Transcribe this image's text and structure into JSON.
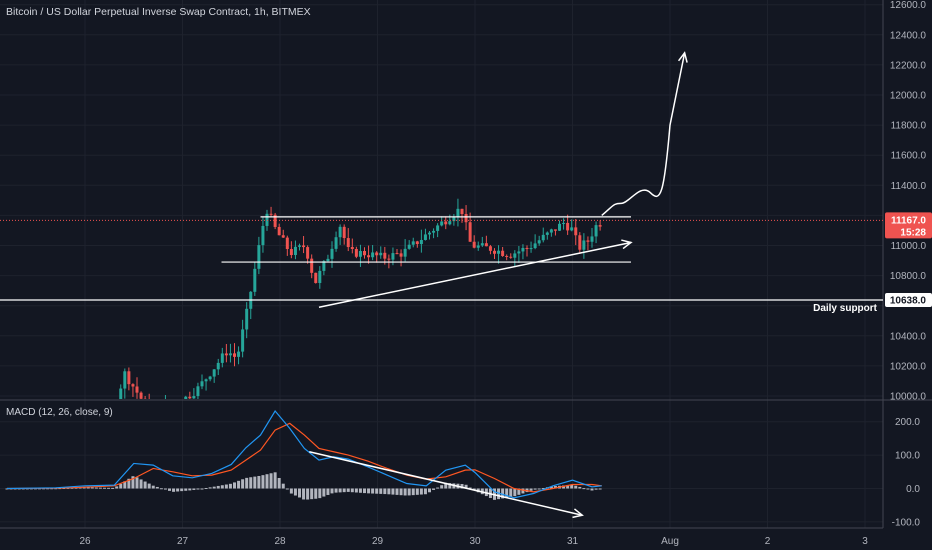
{
  "title": "Bitcoin / US Dollar Perpetual Inverse Swap Contract, 1h, BITMEX",
  "indicator_label": "MACD (12, 26, close, 9)",
  "annotation": "Daily support",
  "colors": {
    "background": "#131722",
    "bull": "#26a69a",
    "bear": "#ef5350",
    "price_badge": "#ef5350",
    "macd_line": "#2196f3",
    "signal_line": "#ff5722",
    "histogram": "#b2b5be",
    "drawing": "#ffffff"
  },
  "price_axis": {
    "ticks": [
      "12600.0",
      "12400.0",
      "12200.0",
      "12000.0",
      "11800.0",
      "11600.0",
      "11400.0",
      "11200.0",
      "11000.0",
      "10800.0",
      "10600.0",
      "10400.0",
      "10200.0",
      "10000.0"
    ],
    "current_price": "11167.0",
    "countdown": "15:28",
    "support_label": "10638.0"
  },
  "macd_axis": {
    "ticks": [
      "200.0",
      "100.0",
      "0.0",
      "-100.0"
    ]
  },
  "time_axis": {
    "ticks": [
      "26",
      "27",
      "28",
      "29",
      "30",
      "31",
      "Aug",
      "2",
      "3"
    ]
  },
  "chart_data": [
    {
      "type": "candlestick",
      "title": "Bitcoin / US Dollar Perpetual Inverse Swap Contract, 1h, BITMEX",
      "x_ticks": [
        "26",
        "27",
        "28",
        "29",
        "30",
        "31",
        "Aug",
        "2",
        "3"
      ],
      "ylim": [
        9950,
        12650
      ],
      "current_price": 11167.0,
      "levels": [
        {
          "label": "Daily support",
          "value": 10638.0
        },
        {
          "value": 11190,
          "from_day": 27.8,
          "to_day": 31.6
        },
        {
          "value": 10890,
          "from_day": 27.4,
          "to_day": 31.6
        }
      ],
      "trendline": {
        "from": [
          28.4,
          10590
        ],
        "to": [
          31.6,
          11020
        ]
      },
      "projection": [
        [
          31.3,
          11200
        ],
        [
          31.5,
          11280
        ],
        [
          31.8,
          11350
        ],
        [
          32.0,
          11800
        ],
        [
          32.15,
          12280
        ]
      ]
    },
    {
      "type": "line",
      "title": "MACD (12, 26, close, 9)",
      "ylim": [
        -110,
        250
      ],
      "series": [
        {
          "name": "MACD",
          "x": [
            25.2,
            25.7,
            26.0,
            26.3,
            26.5,
            26.7,
            26.9,
            27.1,
            27.3,
            27.5,
            27.65,
            27.8,
            27.95,
            28.1,
            28.25,
            28.4,
            28.55,
            28.7,
            28.9,
            29.1,
            29.3,
            29.5,
            29.7,
            29.9,
            30.0,
            30.2,
            30.4,
            30.6,
            30.8,
            31.0,
            31.2,
            31.3
          ],
          "values": [
            0,
            2,
            8,
            10,
            75,
            70,
            38,
            32,
            45,
            72,
            122,
            160,
            232,
            180,
            120,
            85,
            95,
            88,
            65,
            40,
            15,
            8,
            55,
            70,
            48,
            -10,
            -28,
            -15,
            8,
            25,
            5,
            8
          ]
        },
        {
          "name": "Signal",
          "x": [
            25.2,
            25.7,
            26.0,
            26.3,
            26.5,
            26.7,
            26.9,
            27.1,
            27.3,
            27.5,
            27.65,
            27.8,
            27.95,
            28.1,
            28.25,
            28.4,
            28.55,
            28.7,
            28.9,
            29.1,
            29.3,
            29.5,
            29.7,
            29.9,
            30.0,
            30.2,
            30.4,
            30.6,
            30.8,
            31.0,
            31.2,
            31.3
          ],
          "values": [
            0,
            1,
            4,
            8,
            30,
            60,
            50,
            38,
            40,
            55,
            85,
            115,
            175,
            195,
            160,
            120,
            110,
            100,
            82,
            60,
            40,
            28,
            35,
            55,
            56,
            30,
            0,
            -10,
            0,
            12,
            12,
            8
          ]
        }
      ],
      "histogram": {
        "x_range": [
          25.2,
          31.3
        ],
        "peak_positive": 70,
        "trough_negative": -65
      },
      "trendline": {
        "from": [
          28.3,
          110
        ],
        "to": [
          31.1,
          -80
        ]
      }
    }
  ]
}
